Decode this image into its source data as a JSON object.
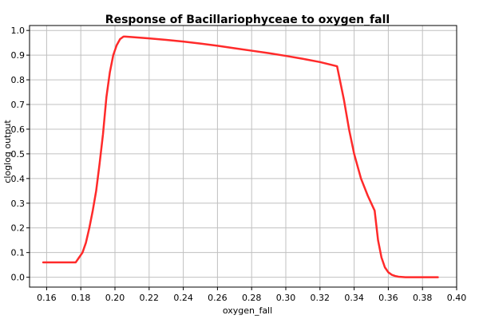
{
  "chart_data": {
    "type": "line",
    "title": "Response of Bacillariophyceae to oxygen_fall",
    "xlabel": "oxygen_fall",
    "ylabel": "cloglog output",
    "xlim": [
      0.15,
      0.4
    ],
    "ylim": [
      -0.04,
      1.02
    ],
    "xticks": [
      0.16,
      0.18,
      0.2,
      0.22,
      0.24,
      0.26,
      0.28,
      0.3,
      0.32,
      0.34,
      0.36,
      0.38,
      0.4
    ],
    "xtick_labels": [
      "0.16",
      "0.18",
      "0.20",
      "0.22",
      "0.24",
      "0.26",
      "0.28",
      "0.30",
      "0.32",
      "0.34",
      "0.36",
      "0.38",
      "0.40"
    ],
    "yticks": [
      0.0,
      0.1,
      0.2,
      0.3,
      0.4,
      0.5,
      0.6,
      0.7,
      0.8,
      0.9,
      1.0
    ],
    "ytick_labels": [
      "0.0",
      "0.1",
      "0.2",
      "0.3",
      "0.4",
      "0.5",
      "0.6",
      "0.7",
      "0.8",
      "0.9",
      "1.0"
    ],
    "grid": true,
    "series": [
      {
        "color": "#ff2a2a",
        "x": [
          0.158,
          0.177,
          0.179,
          0.181,
          0.183,
          0.185,
          0.187,
          0.189,
          0.191,
          0.193,
          0.195,
          0.197,
          0.199,
          0.201,
          0.203,
          0.205,
          0.206,
          0.21,
          0.22,
          0.23,
          0.24,
          0.25,
          0.26,
          0.27,
          0.28,
          0.29,
          0.3,
          0.31,
          0.32,
          0.33,
          0.334,
          0.337,
          0.34,
          0.344,
          0.348,
          0.35,
          0.352,
          0.354,
          0.356,
          0.358,
          0.36,
          0.362,
          0.364,
          0.366,
          0.37,
          0.38,
          0.389
        ],
        "y": [
          0.06,
          0.06,
          0.08,
          0.1,
          0.14,
          0.2,
          0.27,
          0.35,
          0.46,
          0.58,
          0.73,
          0.83,
          0.9,
          0.94,
          0.965,
          0.975,
          0.975,
          0.973,
          0.968,
          0.962,
          0.955,
          0.947,
          0.938,
          0.928,
          0.918,
          0.908,
          0.897,
          0.885,
          0.872,
          0.855,
          0.72,
          0.6,
          0.5,
          0.4,
          0.33,
          0.3,
          0.27,
          0.15,
          0.08,
          0.04,
          0.02,
          0.01,
          0.005,
          0.002,
          0.0,
          0.0,
          0.0
        ]
      }
    ]
  }
}
